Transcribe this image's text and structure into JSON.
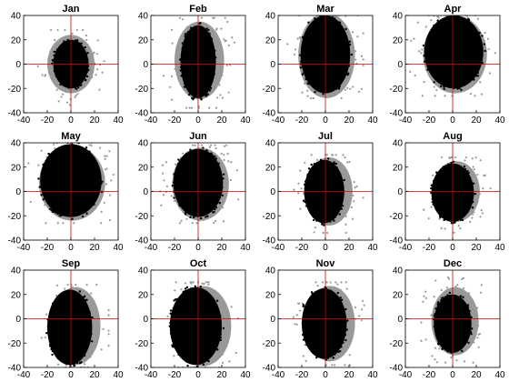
{
  "colors": {
    "inner": "#000000",
    "outer": "#999999",
    "crosshair": "#d40000",
    "axes": "#000000"
  },
  "chart_data": [
    {
      "type": "scatter",
      "title": "Jan",
      "xlim": [
        -40,
        40
      ],
      "ylim": [
        -40,
        40
      ],
      "xticks": [
        -40,
        -20,
        0,
        20,
        40
      ],
      "yticks": [
        -40,
        -20,
        0,
        20,
        40
      ],
      "grid": false,
      "legend": "none",
      "crosshair": [
        0,
        0
      ],
      "outer_cloud": {
        "cx": 0,
        "cy": 0,
        "rx": 20,
        "ry": 24,
        "spread_x": [
          -38,
          35
        ],
        "spread_y": [
          -35,
          28
        ]
      },
      "inner_cloud": {
        "cx": 0,
        "cy": 0,
        "rx": 15,
        "ry": 20
      }
    },
    {
      "type": "scatter",
      "title": "Feb",
      "xlim": [
        -40,
        40
      ],
      "ylim": [
        -40,
        40
      ],
      "xticks": [
        -40,
        -20,
        0,
        20,
        40
      ],
      "yticks": [
        -40,
        -20,
        0,
        20,
        40
      ],
      "grid": false,
      "legend": "none",
      "crosshair": [
        0,
        0
      ],
      "outer_cloud": {
        "cx": 1,
        "cy": 3,
        "rx": 21,
        "ry": 32,
        "spread_x": [
          -32,
          32
        ],
        "spread_y": [
          -36,
          38
        ]
      },
      "inner_cloud": {
        "cx": 0,
        "cy": 2,
        "rx": 15,
        "ry": 30
      }
    },
    {
      "type": "scatter",
      "title": "Mar",
      "xlim": [
        -40,
        40
      ],
      "ylim": [
        -40,
        40
      ],
      "xticks": [
        -40,
        -20,
        0,
        20,
        40
      ],
      "yticks": [
        -40,
        -20,
        0,
        20,
        40
      ],
      "grid": false,
      "legend": "none",
      "crosshair": [
        0,
        0
      ],
      "outer_cloud": {
        "cx": 1,
        "cy": 7,
        "rx": 24,
        "ry": 35,
        "spread_x": [
          -32,
          32
        ],
        "spread_y": [
          -28,
          40
        ]
      },
      "inner_cloud": {
        "cx": 0,
        "cy": 8,
        "rx": 21,
        "ry": 32
      }
    },
    {
      "type": "scatter",
      "title": "Apr",
      "xlim": [
        -40,
        40
      ],
      "ylim": [
        -40,
        40
      ],
      "xticks": [
        -40,
        -20,
        0,
        20,
        40
      ],
      "yticks": [
        -40,
        -20,
        0,
        20,
        40
      ],
      "grid": false,
      "legend": "none",
      "crosshair": [
        0,
        0
      ],
      "outer_cloud": {
        "cx": 2,
        "cy": 8,
        "rx": 27,
        "ry": 32,
        "spread_x": [
          -36,
          36
        ],
        "spread_y": [
          -26,
          40
        ]
      },
      "inner_cloud": {
        "cx": 1,
        "cy": 10,
        "rx": 25,
        "ry": 30
      }
    },
    {
      "type": "scatter",
      "title": "May",
      "xlim": [
        -40,
        40
      ],
      "ylim": [
        -40,
        40
      ],
      "xticks": [
        -40,
        -20,
        0,
        20,
        40
      ],
      "yticks": [
        -40,
        -20,
        0,
        20,
        40
      ],
      "grid": false,
      "legend": "none",
      "crosshair": [
        0,
        0
      ],
      "outer_cloud": {
        "cx": 1,
        "cy": 7,
        "rx": 28,
        "ry": 31,
        "spread_x": [
          -37,
          36
        ],
        "spread_y": [
          -26,
          40
        ]
      },
      "inner_cloud": {
        "cx": 0,
        "cy": 9,
        "rx": 26,
        "ry": 30
      }
    },
    {
      "type": "scatter",
      "title": "Jun",
      "xlim": [
        -40,
        40
      ],
      "ylim": [
        -40,
        40
      ],
      "xticks": [
        -40,
        -20,
        0,
        20,
        40
      ],
      "yticks": [
        -40,
        -20,
        0,
        20,
        40
      ],
      "grid": false,
      "legend": "none",
      "crosshair": [
        0,
        0
      ],
      "outer_cloud": {
        "cx": 2,
        "cy": 6,
        "rx": 24,
        "ry": 30,
        "spread_x": [
          -32,
          34
        ],
        "spread_y": [
          -26,
          38
        ]
      },
      "inner_cloud": {
        "cx": 0,
        "cy": 7,
        "rx": 21,
        "ry": 28
      }
    },
    {
      "type": "scatter",
      "title": "Jul",
      "xlim": [
        -40,
        40
      ],
      "ylim": [
        -40,
        40
      ],
      "xticks": [
        -40,
        -20,
        0,
        20,
        40
      ],
      "yticks": [
        -40,
        -20,
        0,
        20,
        40
      ],
      "grid": false,
      "legend": "none",
      "crosshair": [
        0,
        0
      ],
      "outer_cloud": {
        "cx": 3,
        "cy": 0,
        "rx": 20,
        "ry": 28,
        "spread_x": [
          -30,
          32
        ],
        "spread_y": [
          -34,
          30
        ]
      },
      "inner_cloud": {
        "cx": -1,
        "cy": 0,
        "rx": 17,
        "ry": 26
      }
    },
    {
      "type": "scatter",
      "title": "Aug",
      "xlim": [
        -40,
        40
      ],
      "ylim": [
        -40,
        40
      ],
      "xticks": [
        -40,
        -20,
        0,
        20,
        40
      ],
      "yticks": [
        -40,
        -20,
        0,
        20,
        40
      ],
      "grid": false,
      "legend": "none",
      "crosshair": [
        0,
        0
      ],
      "outer_cloud": {
        "cx": 3,
        "cy": 0,
        "rx": 20,
        "ry": 25,
        "spread_x": [
          -30,
          32
        ],
        "spread_y": [
          -34,
          28
        ]
      },
      "inner_cloud": {
        "cx": 0,
        "cy": -1,
        "rx": 18,
        "ry": 24
      }
    },
    {
      "type": "scatter",
      "title": "Sep",
      "xlim": [
        -40,
        40
      ],
      "ylim": [
        -40,
        40
      ],
      "xticks": [
        -40,
        -20,
        0,
        20,
        40
      ],
      "yticks": [
        -40,
        -20,
        0,
        20,
        40
      ],
      "grid": false,
      "legend": "none",
      "crosshair": [
        0,
        0
      ],
      "outer_cloud": {
        "cx": 4,
        "cy": -6,
        "rx": 21,
        "ry": 32,
        "spread_x": [
          -26,
          32
        ],
        "spread_y": [
          -40,
          28
        ]
      },
      "inner_cloud": {
        "cx": -1,
        "cy": -7,
        "rx": 19,
        "ry": 31
      }
    },
    {
      "type": "scatter",
      "title": "Oct",
      "xlim": [
        -40,
        40
      ],
      "ylim": [
        -40,
        40
      ],
      "xticks": [
        -40,
        -20,
        0,
        20,
        40
      ],
      "yticks": [
        -40,
        -20,
        0,
        20,
        40
      ],
      "grid": false,
      "legend": "none",
      "crosshair": [
        0,
        0
      ],
      "outer_cloud": {
        "cx": 4,
        "cy": -6,
        "rx": 24,
        "ry": 33,
        "spread_x": [
          -33,
          38
        ],
        "spread_y": [
          -40,
          30
        ]
      },
      "inner_cloud": {
        "cx": -2,
        "cy": -6,
        "rx": 22,
        "ry": 32
      }
    },
    {
      "type": "scatter",
      "title": "Nov",
      "xlim": [
        -40,
        40
      ],
      "ylim": [
        -40,
        40
      ],
      "xticks": [
        -40,
        -20,
        0,
        20,
        40
      ],
      "yticks": [
        -40,
        -20,
        0,
        20,
        40
      ],
      "grid": false,
      "legend": "none",
      "crosshair": [
        0,
        0
      ],
      "outer_cloud": {
        "cx": 4,
        "cy": -4,
        "rx": 21,
        "ry": 31,
        "spread_x": [
          -30,
          36
        ],
        "spread_y": [
          -38,
          30
        ]
      },
      "inner_cloud": {
        "cx": -1,
        "cy": -4,
        "rx": 19,
        "ry": 29
      }
    },
    {
      "type": "scatter",
      "title": "Dec",
      "xlim": [
        -40,
        40
      ],
      "ylim": [
        -40,
        40
      ],
      "xticks": [
        -40,
        -20,
        0,
        20,
        40
      ],
      "yticks": [
        -40,
        -20,
        0,
        20,
        40
      ],
      "grid": false,
      "legend": "none",
      "crosshair": [
        0,
        0
      ],
      "outer_cloud": {
        "cx": 2,
        "cy": -2,
        "rx": 20,
        "ry": 28,
        "spread_x": [
          -30,
          34
        ],
        "spread_y": [
          -36,
          34
        ]
      },
      "inner_cloud": {
        "cx": 0,
        "cy": -4,
        "rx": 16,
        "ry": 24
      }
    }
  ]
}
